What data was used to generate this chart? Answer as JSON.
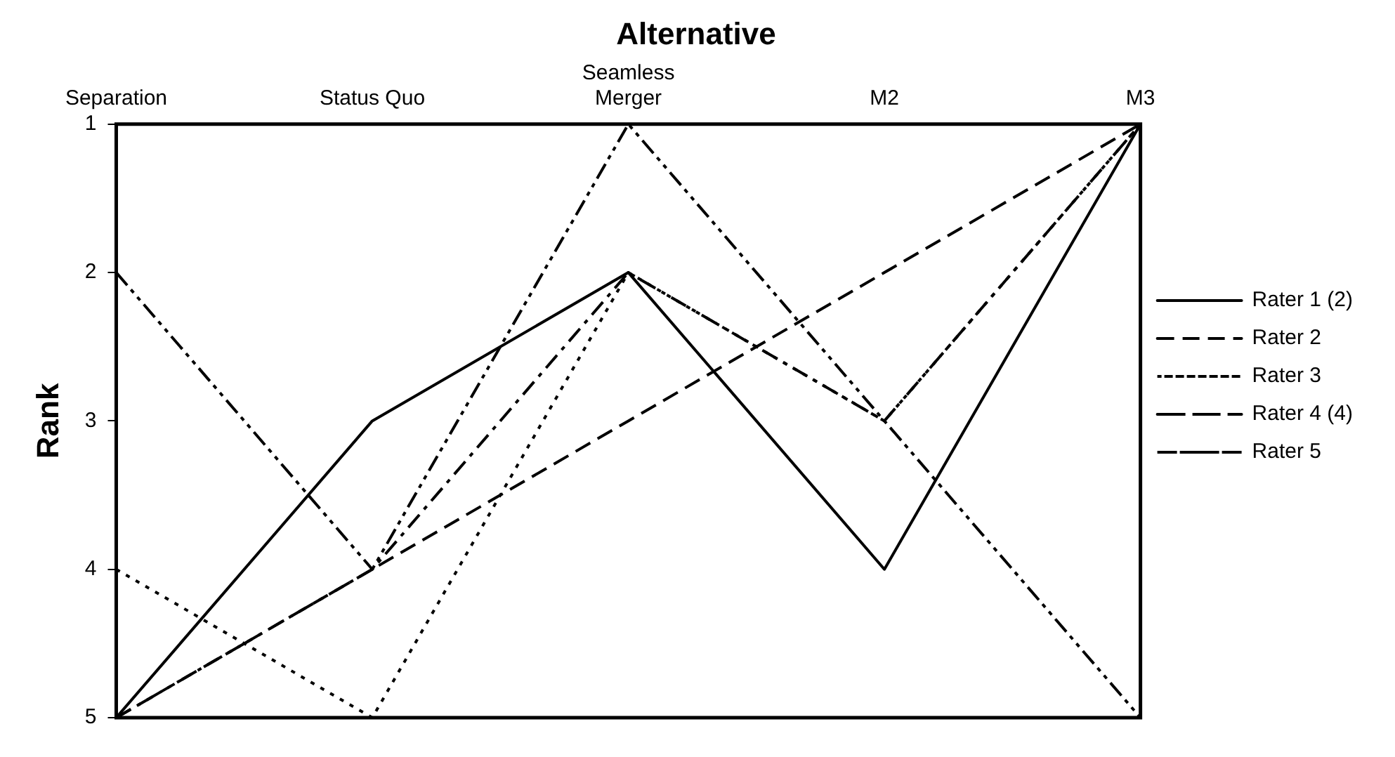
{
  "chart_data": {
    "type": "line",
    "title": "Alternative",
    "ylabel": "Rank",
    "categories": [
      "Separation",
      "Status Quo",
      "Seamless\nMerger",
      "M2",
      "M3"
    ],
    "ylim": [
      5,
      1
    ],
    "yticks": [
      1,
      2,
      3,
      4,
      5
    ],
    "grid": false,
    "legend": "right",
    "marker": "none",
    "series": [
      {
        "name": "Rater 1 (2)",
        "color": "#000000",
        "line_style": "solid",
        "values": [
          5,
          3,
          2,
          4,
          1
        ]
      },
      {
        "name": "Rater 2",
        "color": "#000000",
        "line_style": "dashed",
        "values": [
          5,
          4,
          3,
          2,
          1
        ]
      },
      {
        "name": "Rater 3",
        "color": "#000000",
        "line_style": "dotted",
        "values": [
          4,
          5,
          2,
          3,
          1
        ]
      },
      {
        "name": "Rater 4 (4)",
        "color": "#000000",
        "line_style": "dashdot",
        "values": [
          5,
          4,
          2,
          3,
          1
        ]
      },
      {
        "name": "Rater 5",
        "color": "#000000",
        "line_style": "dashdotdot",
        "values": [
          2,
          4,
          1,
          3,
          5
        ]
      }
    ]
  }
}
